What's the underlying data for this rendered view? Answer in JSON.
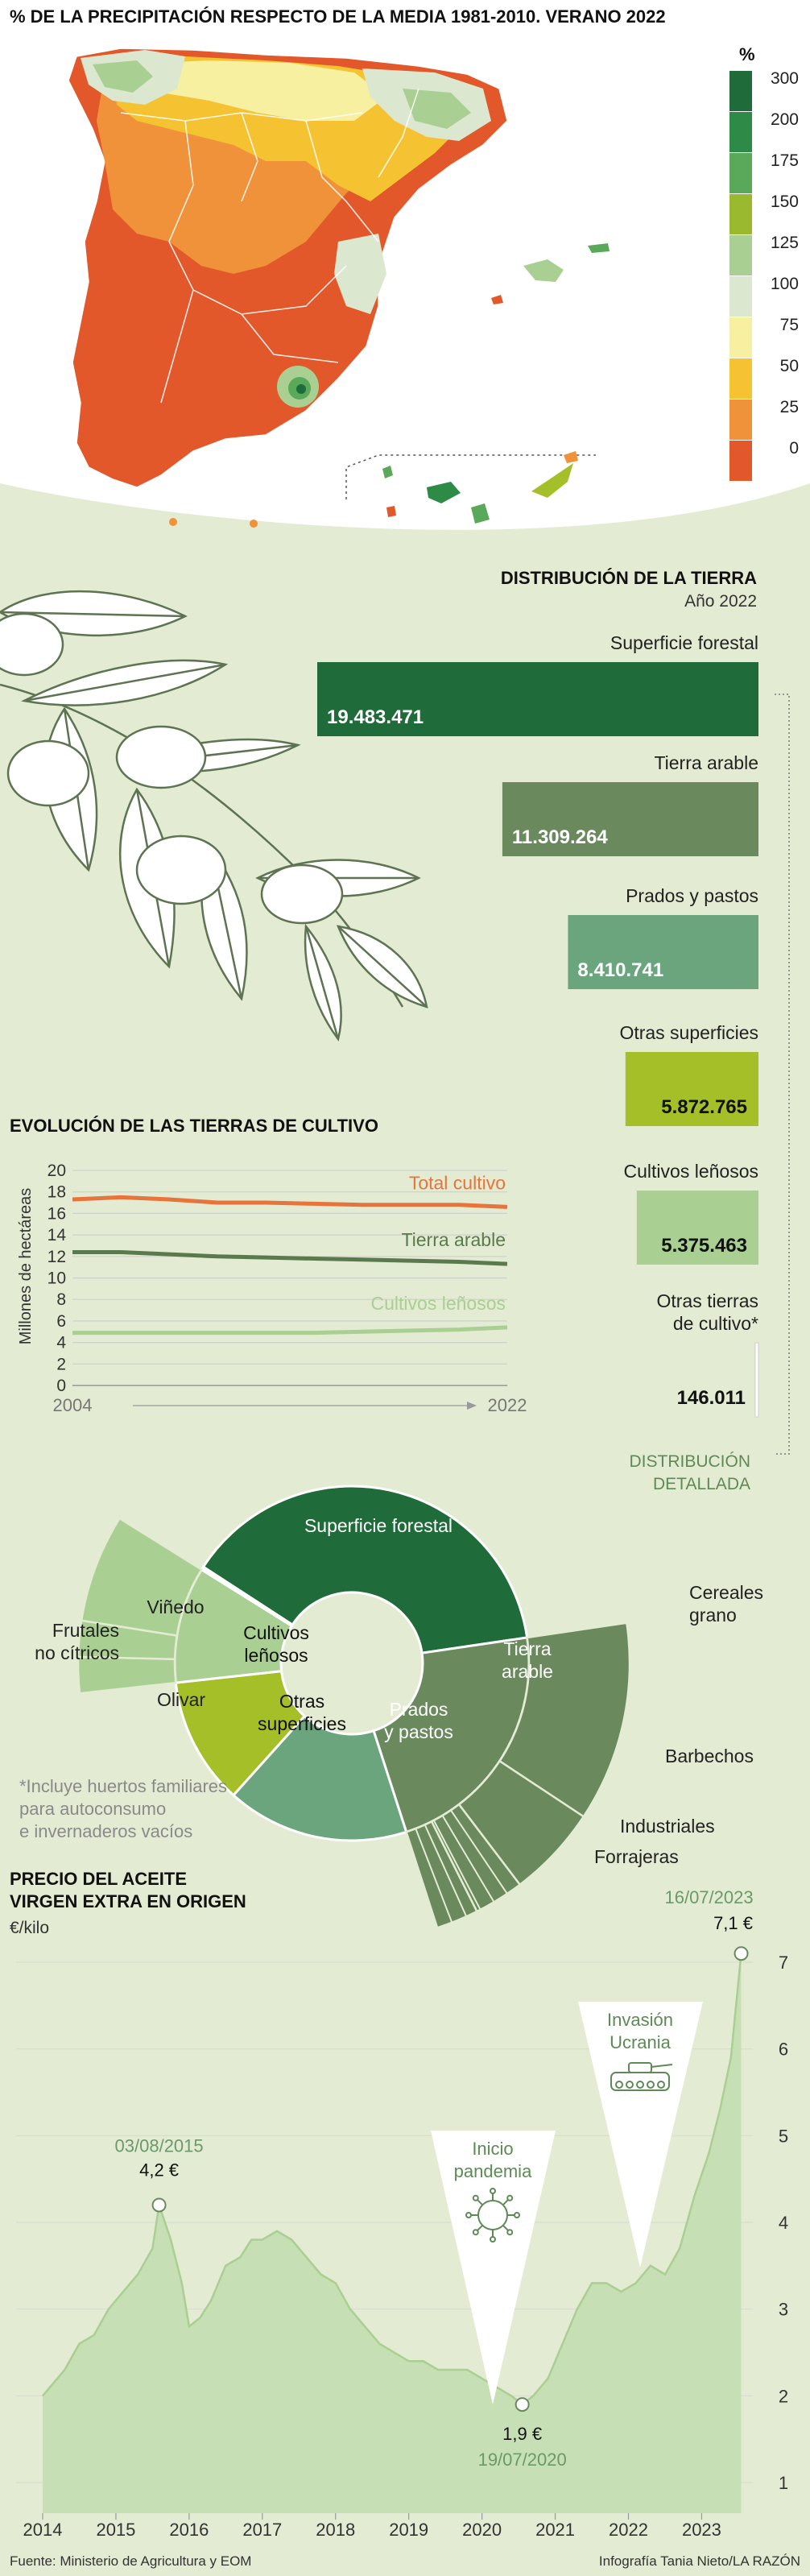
{
  "map": {
    "title": "% DE LA PRECIPITACIÓN RESPECTO DE LA MEDIA 1981-2010. VERANO 2022",
    "legend_unit": "%",
    "legend": [
      {
        "label": "300",
        "color": "#1f6b3a"
      },
      {
        "label": "200",
        "color": "#2e8b47"
      },
      {
        "label": "175",
        "color": "#5aa85a"
      },
      {
        "label": "150",
        "color": "#9ab92e"
      },
      {
        "label": "125",
        "color": "#a9cf92"
      },
      {
        "label": "100",
        "color": "#dbe8cf"
      },
      {
        "label": "75",
        "color": "#f6f0a0"
      },
      {
        "label": "50",
        "color": "#f5c232"
      },
      {
        "label": "25",
        "color": "#f0923a"
      },
      {
        "label": "0",
        "color": "#e2582b"
      }
    ]
  },
  "land": {
    "title": "DISTRIBUCIÓN DE LA TIERRA",
    "subtitle": "Año 2022",
    "footnote_link": "DISTRIBUCIÓN DETALLADA",
    "footnote_lines": [
      "*Incluye huertos familiares",
      "para autoconsumo",
      "e invernaderos vacíos"
    ]
  },
  "evolution": {
    "title": "EVOLUCIÓN DE LAS TIERRAS DE CULTIVO",
    "ylabel": "Millones de hectáreas"
  },
  "oil": {
    "title_line1": "PRECIO DEL ACEITE",
    "title_line2": "VIRGEN EXTRA EN ORIGEN",
    "unit": "€/kilo"
  },
  "footer": {
    "source": "Fuente: Ministerio de Agricultura y EOM",
    "credit": "Infografía Tania Nieto/LA RAZÓN"
  },
  "chart_data": [
    {
      "type": "bar",
      "title": "DISTRIBUCIÓN DE LA TIERRA",
      "subtitle": "Año 2022",
      "categories": [
        "Superficie forestal",
        "Tierra arable",
        "Prados y pastos",
        "Otras superficies",
        "Cultivos leñosos",
        "Otras tierras de cultivo*"
      ],
      "values": [
        19483471,
        11309264,
        8410741,
        5872765,
        5375463,
        146011
      ],
      "value_labels": [
        "19.483.471",
        "11.309.264",
        "8.410.741",
        "5.872.765",
        "5.375.463",
        "146.011"
      ],
      "colors": [
        "#1f6b3a",
        "#6a8a5e",
        "#6aa57d",
        "#a4bf28",
        "#a9cf92",
        "#ffffff"
      ]
    },
    {
      "type": "line",
      "title": "EVOLUCIÓN DE LAS TIERRAS DE CULTIVO",
      "ylabel": "Millones de hectáreas",
      "x": [
        2004,
        2006,
        2008,
        2010,
        2012,
        2014,
        2016,
        2018,
        2020,
        2022
      ],
      "x_tick_labels": [
        "2004",
        "2022"
      ],
      "yticks": [
        0,
        2,
        4,
        6,
        8,
        10,
        12,
        14,
        16,
        18,
        20
      ],
      "ylim": [
        0,
        20
      ],
      "series": [
        {
          "name": "Total cultivo",
          "color": "#e8743b",
          "values": [
            17.3,
            17.5,
            17.3,
            17.0,
            17.0,
            16.9,
            16.8,
            16.8,
            16.8,
            16.6
          ]
        },
        {
          "name": "Tierra arable",
          "color": "#5a7a4e",
          "values": [
            12.4,
            12.4,
            12.2,
            12.0,
            11.9,
            11.8,
            11.7,
            11.6,
            11.5,
            11.3
          ]
        },
        {
          "name": "Cultivos leñosos",
          "color": "#a9cf92",
          "values": [
            4.9,
            4.9,
            4.9,
            4.9,
            4.9,
            4.9,
            5.0,
            5.1,
            5.2,
            5.4
          ]
        }
      ]
    },
    {
      "type": "pie",
      "title": "DISTRIBUCIÓN DETALLADA",
      "inner": [
        {
          "label": "Superficie forestal",
          "value": 19483471,
          "color": "#1f6b3a"
        },
        {
          "label": "Tierra arable",
          "value": 11309264,
          "color": "#6a8a5e"
        },
        {
          "label": "Prados y pastos",
          "value": 8410741,
          "color": "#6aa57d"
        },
        {
          "label": "Otras superficies",
          "value": 5872765,
          "color": "#a4bf28"
        },
        {
          "label": "Cultivos leñosos",
          "value": 5375463,
          "color": "#a9cf92"
        },
        {
          "label": "",
          "value": 146011,
          "color": "#ffffff"
        }
      ],
      "outer_tierra_arable": [
        "Cereales grano",
        "Barbechos",
        "Industriales",
        "Forrajeras"
      ],
      "outer_cultivos_lenosos": [
        "Viñedo",
        "Frutales no cítricos",
        "Olivar"
      ]
    },
    {
      "type": "area",
      "title": "PRECIO DEL ACEITE VIRGEN EXTRA EN ORIGEN",
      "ylabel": "€/kilo",
      "ylim": [
        1,
        7
      ],
      "yticks": [
        1,
        2,
        3,
        4,
        5,
        6,
        7
      ],
      "x_tick_labels": [
        "2014",
        "2015",
        "2016",
        "2017",
        "2018",
        "2019",
        "2020",
        "2021",
        "2022",
        "2023"
      ],
      "x": [
        2014.0,
        2014.3,
        2014.5,
        2014.7,
        2014.9,
        2015.1,
        2015.3,
        2015.5,
        2015.59,
        2015.75,
        2015.9,
        2016.0,
        2016.15,
        2016.3,
        2016.5,
        2016.7,
        2016.85,
        2017.0,
        2017.2,
        2017.4,
        2017.6,
        2017.8,
        2018.0,
        2018.2,
        2018.4,
        2018.6,
        2018.8,
        2019.0,
        2019.2,
        2019.4,
        2019.6,
        2019.8,
        2020.0,
        2020.2,
        2020.4,
        2020.55,
        2020.7,
        2020.9,
        2021.1,
        2021.3,
        2021.5,
        2021.7,
        2021.9,
        2022.1,
        2022.3,
        2022.5,
        2022.7,
        2022.9,
        2023.1,
        2023.25,
        2023.4,
        2023.54
      ],
      "values": [
        2.0,
        2.3,
        2.6,
        2.7,
        3.0,
        3.2,
        3.4,
        3.7,
        4.2,
        3.8,
        3.3,
        2.8,
        2.9,
        3.1,
        3.5,
        3.6,
        3.8,
        3.8,
        3.9,
        3.8,
        3.6,
        3.4,
        3.3,
        3.0,
        2.8,
        2.6,
        2.5,
        2.4,
        2.4,
        2.3,
        2.3,
        2.3,
        2.2,
        2.1,
        2.0,
        1.9,
        2.0,
        2.2,
        2.6,
        3.0,
        3.3,
        3.3,
        3.2,
        3.3,
        3.5,
        3.4,
        3.7,
        4.3,
        4.8,
        5.3,
        5.9,
        7.1
      ],
      "annotations": [
        {
          "text": "4,2 €",
          "date": "03/08/2015"
        },
        {
          "text": "1,9 €",
          "date": "19/07/2020"
        },
        {
          "text": "7,1 €",
          "date": "16/07/2023"
        },
        {
          "text": "Inicio pandemia"
        },
        {
          "text": "Invasión Ucrania"
        }
      ]
    }
  ]
}
